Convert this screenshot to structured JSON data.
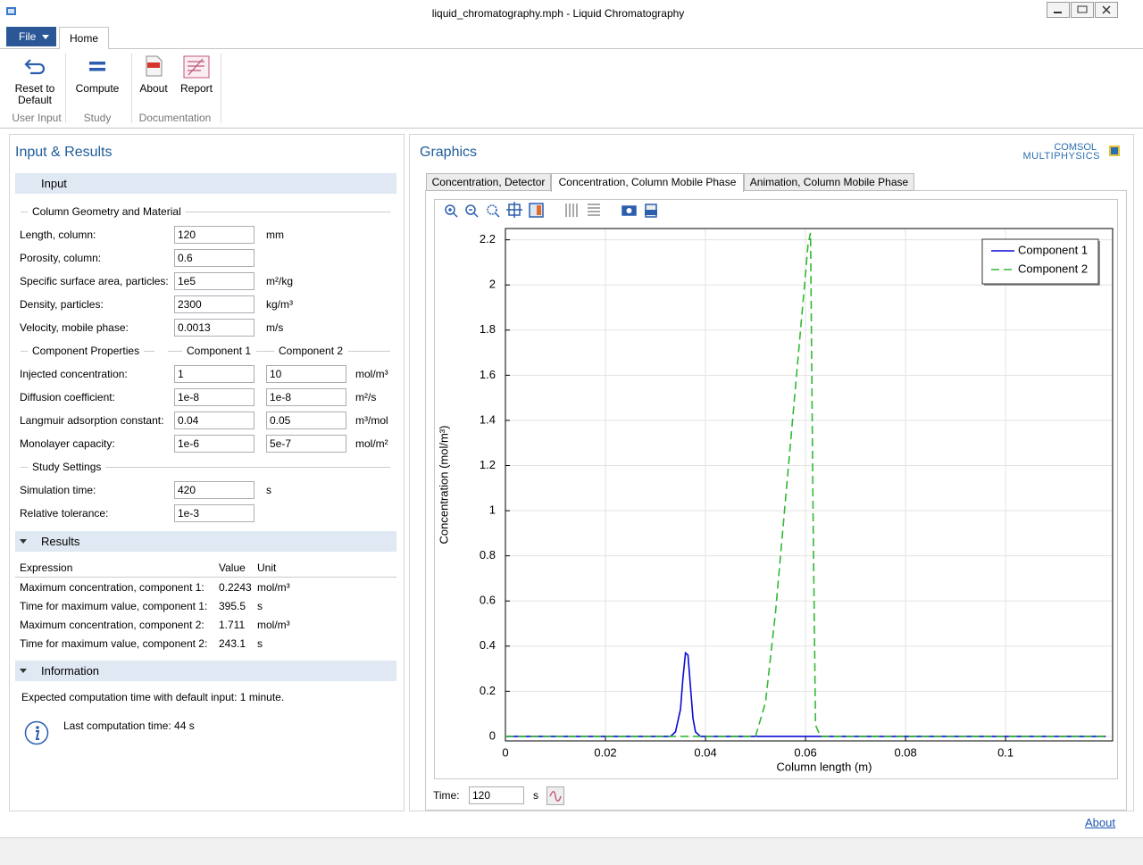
{
  "window": {
    "title": "liquid_chromatography.mph - Liquid Chromatography"
  },
  "ribbon": {
    "file": "File",
    "tab": "Home",
    "buttons": [
      "Reset to Default",
      "Compute",
      "About",
      "Report"
    ],
    "groups": [
      "User Input",
      "Study",
      "Documentation"
    ]
  },
  "input_results": {
    "title": "Input & Results",
    "input": {
      "heading": "Input",
      "geometry": {
        "heading": "Column Geometry and Material",
        "rows": [
          {
            "label": "Length, column:",
            "value": "120",
            "unit": "mm"
          },
          {
            "label": "Porosity, column:",
            "value": "0.6",
            "unit": ""
          },
          {
            "label": "Specific surface area, particles:",
            "value": "1e5",
            "unit": "m²/kg"
          },
          {
            "label": "Density, particles:",
            "value": "2300",
            "unit": "kg/m³"
          },
          {
            "label": "Velocity, mobile phase:",
            "value": "0.0013",
            "unit": "m/s"
          }
        ]
      },
      "components": {
        "heading": "Component Properties",
        "columns": [
          "Component 1",
          "Component 2"
        ],
        "rows": [
          {
            "label": "Injected concentration:",
            "values": [
              "1",
              "10"
            ],
            "unit": "mol/m³"
          },
          {
            "label": "Diffusion coefficient:",
            "values": [
              "1e-8",
              "1e-8"
            ],
            "unit": "m²/s"
          },
          {
            "label": "Langmuir adsorption constant:",
            "values": [
              "0.04",
              "0.05"
            ],
            "unit": "m³/mol"
          },
          {
            "label": "Monolayer capacity:",
            "values": [
              "1e-6",
              "5e-7"
            ],
            "unit": "mol/m²"
          }
        ]
      },
      "study": {
        "heading": "Study Settings",
        "rows": [
          {
            "label": "Simulation time:",
            "value": "420",
            "unit": "s"
          },
          {
            "label": "Relative tolerance:",
            "value": "1e-3",
            "unit": ""
          }
        ]
      }
    },
    "results": {
      "heading": "Results",
      "columns": [
        "Expression",
        "Value",
        "Unit"
      ],
      "rows": [
        [
          "Maximum concentration, component 1:",
          "0.2243",
          "mol/m³"
        ],
        [
          "Time for maximum value, component 1:",
          "395.5",
          "s"
        ],
        [
          "Maximum concentration, component 2:",
          "1.711",
          "mol/m³"
        ],
        [
          "Time for maximum value, component 2:",
          "243.1",
          "s"
        ]
      ]
    },
    "information": {
      "heading": "Information",
      "text": "Expected computation time with default input: 1 minute.",
      "last": "Last computation time: 44 s"
    }
  },
  "graphics": {
    "title": "Graphics",
    "logo": [
      "COMSOL",
      "MULTIPHYSICS"
    ],
    "tabs": [
      "Concentration, Detector",
      "Concentration, Column Mobile Phase",
      "Animation, Column Mobile Phase"
    ],
    "time": {
      "label": "Time:",
      "value": "120",
      "unit": "s"
    }
  },
  "footer": {
    "link": "About"
  },
  "chart_data": {
    "type": "line",
    "x_label": "Column length (m)",
    "y_label": "Concentration (mol/m³)",
    "x": [
      0,
      0.033,
      0.034,
      0.035,
      0.0355,
      0.036,
      0.0365,
      0.037,
      0.0375,
      0.038,
      0.039,
      0.05,
      0.052,
      0.054,
      0.056,
      0.058,
      0.06,
      0.0605,
      0.061,
      0.0615,
      0.062,
      0.063,
      0.12
    ],
    "series": [
      {
        "name": "Component 1",
        "color": "#0a0ad6",
        "dash": "solid",
        "values": [
          0,
          0,
          0.02,
          0.12,
          0.26,
          0.37,
          0.36,
          0.22,
          0.08,
          0.02,
          0,
          0,
          0,
          0,
          0,
          0,
          0,
          0,
          0,
          0,
          0,
          0,
          0
        ]
      },
      {
        "name": "Component 2",
        "color": "#33b833",
        "dash": "dashed",
        "values": [
          0,
          0,
          0,
          0,
          0,
          0,
          0,
          0,
          0,
          0,
          0,
          0,
          0.15,
          0.55,
          1.05,
          1.55,
          2.05,
          2.18,
          2.23,
          1.0,
          0.05,
          0,
          0
        ]
      }
    ],
    "xlim": [
      0,
      0.1214
    ],
    "ylim": [
      -0.02,
      2.25
    ],
    "xticks": [
      0,
      0.02,
      0.04,
      0.06,
      0.08,
      0.1
    ],
    "yticks": [
      0,
      0.2,
      0.4,
      0.6,
      0.8,
      1,
      1.2,
      1.4,
      1.6,
      1.8,
      2,
      2.2
    ],
    "grid": true,
    "legend": "upper right"
  }
}
